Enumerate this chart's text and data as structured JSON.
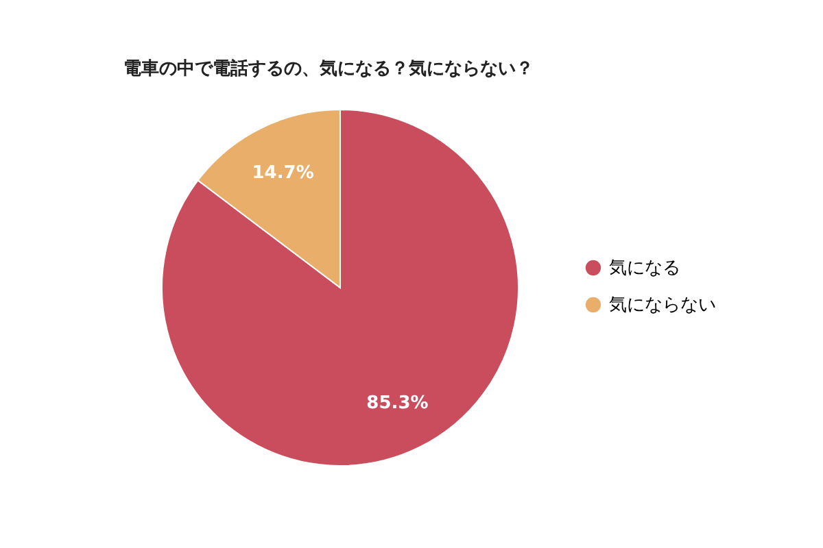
{
  "chart_data": {
    "type": "pie",
    "title": "電車の中で電話するの、気になる？気にならない？",
    "categories": [
      "気になる",
      "気にならない"
    ],
    "values": [
      85.3,
      14.7
    ],
    "colors": [
      "#c94d5c",
      "#e8ae6a"
    ],
    "value_labels": [
      "85.3%",
      "14.7%"
    ],
    "legend": "right"
  }
}
